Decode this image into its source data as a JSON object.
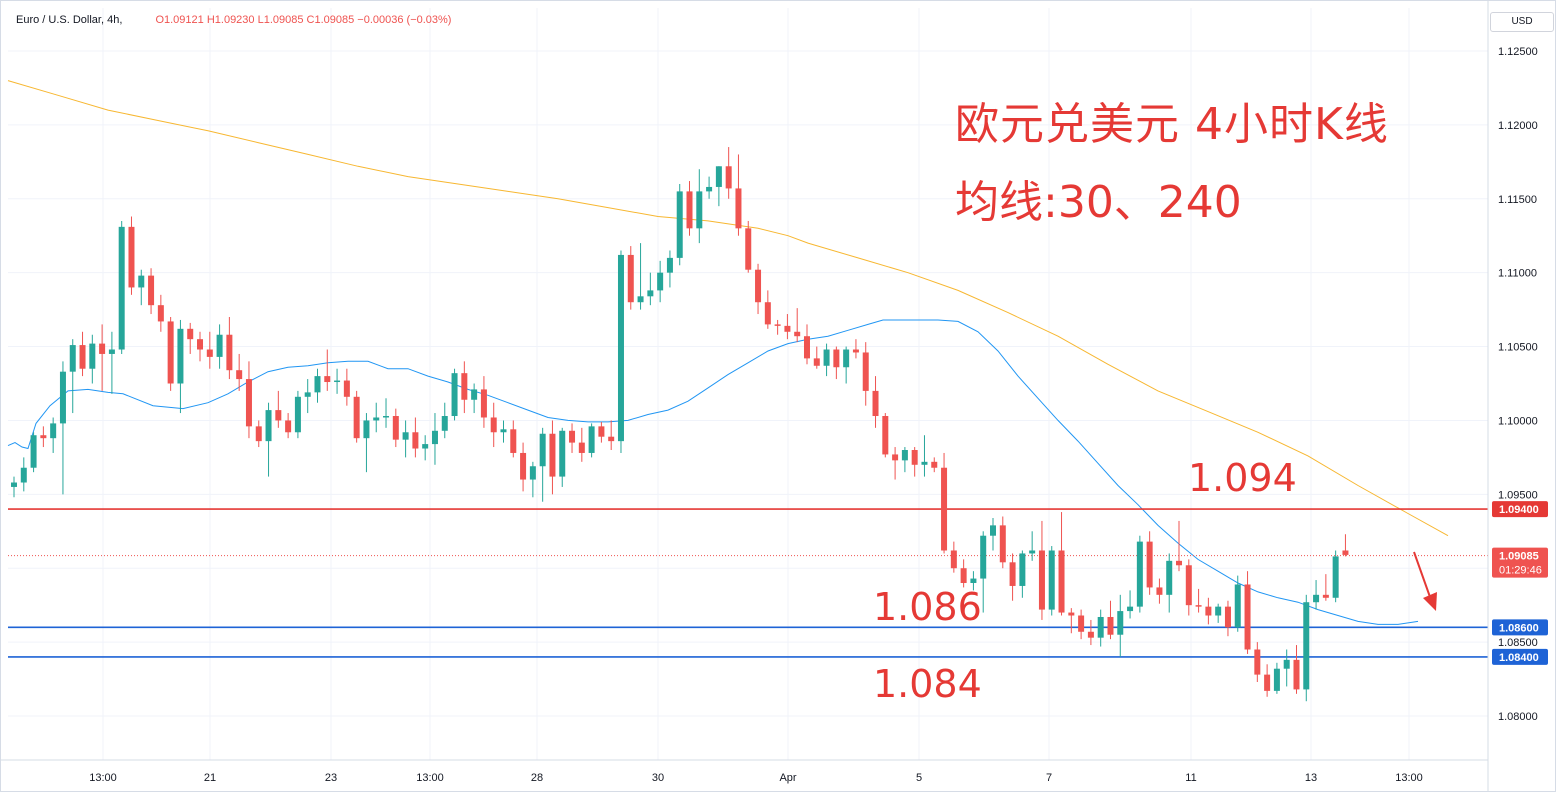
{
  "header": {
    "symbol": "Euro / U.S. Dollar, 4h,",
    "ohlc": "O1.09121  H1.09230  L1.09085  C1.09085  −0.00036 (−0.03%)"
  },
  "currency": "USD",
  "annotations": {
    "title": "欧元兑美元 4小时K线",
    "ma_text": "均线:30、240",
    "level_1094": "1.094",
    "level_1086": "1.086",
    "level_1084": "1.084"
  },
  "colors": {
    "up": "#26a69a",
    "down": "#ef5350",
    "ma30": "#2196f3",
    "ma240": "#f7b731",
    "resistance": "#e53935",
    "support": "#1e63d6"
  },
  "chart_data": {
    "type": "candlestick",
    "title": "",
    "ylim": [
      1.077,
      1.127
    ],
    "y_ticks": [
      "1.12500",
      "1.12000",
      "1.11500",
      "1.11000",
      "1.10500",
      "1.10000",
      "1.09500",
      "1.08500",
      "1.08000"
    ],
    "x_ticks": [
      "13:00",
      "21",
      "23",
      "13:00",
      "28",
      "30",
      "Apr",
      "5",
      "7",
      "11",
      "13",
      "13:00"
    ],
    "price_labels": {
      "resistance": "1.09400",
      "current": "1.09085",
      "countdown": "01:29:46",
      "support_1": "1.08600",
      "support_2": "1.08400"
    },
    "horizontal_lines": [
      {
        "value": 1.094,
        "role": "resistance"
      },
      {
        "value": 1.086,
        "role": "support"
      },
      {
        "value": 1.084,
        "role": "support"
      },
      {
        "value": 1.09085,
        "role": "current"
      }
    ],
    "candles": [
      [
        1.0955,
        1.0962,
        1.0948,
        1.0958
      ],
      [
        1.0958,
        1.0975,
        1.0952,
        1.0968
      ],
      [
        1.0968,
        1.0992,
        1.0965,
        1.099
      ],
      [
        1.099,
        1.0996,
        1.0982,
        1.0988
      ],
      [
        1.0988,
        1.1002,
        1.0978,
        1.0998
      ],
      [
        1.0998,
        1.104,
        1.095,
        1.1033
      ],
      [
        1.1033,
        1.1055,
        1.1005,
        1.1051
      ],
      [
        1.1051,
        1.106,
        1.103,
        1.1035
      ],
      [
        1.1035,
        1.1058,
        1.1025,
        1.1052
      ],
      [
        1.1052,
        1.1065,
        1.102,
        1.1045
      ],
      [
        1.1045,
        1.106,
        1.1018,
        1.1048
      ],
      [
        1.1048,
        1.1135,
        1.1045,
        1.1131
      ],
      [
        1.1131,
        1.1138,
        1.1085,
        1.109
      ],
      [
        1.109,
        1.1102,
        1.1078,
        1.1098
      ],
      [
        1.1098,
        1.1103,
        1.1072,
        1.1078
      ],
      [
        1.1078,
        1.1085,
        1.106,
        1.1067
      ],
      [
        1.1067,
        1.107,
        1.102,
        1.1025
      ],
      [
        1.1025,
        1.1068,
        1.1005,
        1.1062
      ],
      [
        1.1062,
        1.1066,
        1.1045,
        1.1055
      ],
      [
        1.1055,
        1.106,
        1.104,
        1.1048
      ],
      [
        1.1048,
        1.106,
        1.1035,
        1.1043
      ],
      [
        1.1043,
        1.1065,
        1.1035,
        1.1058
      ],
      [
        1.1058,
        1.107,
        1.1028,
        1.1034
      ],
      [
        1.1034,
        1.1045,
        1.102,
        1.1028
      ],
      [
        1.1028,
        1.104,
        1.0988,
        1.0996
      ],
      [
        1.0996,
        1.1,
        1.0982,
        1.0986
      ],
      [
        1.0986,
        1.1012,
        1.0962,
        1.1007
      ],
      [
        1.1007,
        1.102,
        1.0995,
        1.1
      ],
      [
        1.1,
        1.1005,
        1.0988,
        1.0992
      ],
      [
        1.0992,
        1.102,
        1.0988,
        1.1016
      ],
      [
        1.1016,
        1.1028,
        1.1005,
        1.1019
      ],
      [
        1.1019,
        1.1035,
        1.1012,
        1.103
      ],
      [
        1.103,
        1.1048,
        1.102,
        1.1026
      ],
      [
        1.1026,
        1.1035,
        1.1018,
        1.1027
      ],
      [
        1.1027,
        1.1035,
        1.101,
        1.1016
      ],
      [
        1.1016,
        1.102,
        1.0985,
        1.0988
      ],
      [
        1.0988,
        1.1005,
        1.0965,
        1.1
      ],
      [
        1.1,
        1.1012,
        1.0992,
        1.1002
      ],
      [
        1.1002,
        1.1015,
        1.0995,
        1.1003
      ],
      [
        1.1003,
        1.1008,
        1.0982,
        1.0987
      ],
      [
        1.0987,
        1.1,
        1.0975,
        1.0992
      ],
      [
        1.0992,
        1.1002,
        1.0975,
        1.0981
      ],
      [
        1.0981,
        1.099,
        1.0973,
        1.0984
      ],
      [
        1.0984,
        1.1005,
        1.097,
        1.0993
      ],
      [
        1.0993,
        1.1012,
        1.0988,
        1.1003
      ],
      [
        1.1003,
        1.1035,
        1.1,
        1.1032
      ],
      [
        1.1032,
        1.104,
        1.1005,
        1.1014
      ],
      [
        1.1014,
        1.1025,
        1.1005,
        1.1021
      ],
      [
        1.1021,
        1.103,
        1.0995,
        1.1002
      ],
      [
        1.1002,
        1.1012,
        1.0982,
        1.0992
      ],
      [
        1.0992,
        1.1,
        1.0985,
        1.0994
      ],
      [
        1.0994,
        1.1,
        1.0975,
        1.0978
      ],
      [
        1.0978,
        1.0985,
        1.0952,
        1.096
      ],
      [
        1.096,
        1.0972,
        1.0948,
        1.0969
      ],
      [
        1.0969,
        1.0995,
        1.0945,
        1.0991
      ],
      [
        1.0991,
        1.1,
        1.095,
        1.0962
      ],
      [
        1.0962,
        1.0995,
        1.0955,
        1.0993
      ],
      [
        1.0993,
        1.0998,
        1.0978,
        1.0985
      ],
      [
        1.0985,
        1.0995,
        1.0972,
        1.0978
      ],
      [
        1.0978,
        1.0998,
        1.0975,
        1.0996
      ],
      [
        1.0996,
        1.0999,
        1.0985,
        1.0989
      ],
      [
        1.0989,
        1.1,
        1.098,
        1.0986
      ],
      [
        1.0986,
        1.1115,
        1.0978,
        1.1112
      ],
      [
        1.1112,
        1.1118,
        1.1075,
        1.108
      ],
      [
        1.108,
        1.112,
        1.1075,
        1.1084
      ],
      [
        1.1084,
        1.11,
        1.1078,
        1.1088
      ],
      [
        1.1088,
        1.1108,
        1.108,
        1.11
      ],
      [
        1.11,
        1.1115,
        1.109,
        1.111
      ],
      [
        1.111,
        1.116,
        1.1105,
        1.1155
      ],
      [
        1.1155,
        1.1162,
        1.1125,
        1.113
      ],
      [
        1.113,
        1.117,
        1.112,
        1.1155
      ],
      [
        1.1155,
        1.1165,
        1.115,
        1.1158
      ],
      [
        1.1158,
        1.1172,
        1.1145,
        1.1172
      ],
      [
        1.1172,
        1.1185,
        1.115,
        1.1157
      ],
      [
        1.1157,
        1.118,
        1.1125,
        1.113
      ],
      [
        1.113,
        1.1135,
        1.11,
        1.1102
      ],
      [
        1.1102,
        1.1106,
        1.1072,
        1.108
      ],
      [
        1.108,
        1.1088,
        1.1062,
        1.1065
      ],
      [
        1.1065,
        1.1068,
        1.1058,
        1.1064
      ],
      [
        1.1064,
        1.1072,
        1.1055,
        1.106
      ],
      [
        1.106,
        1.1076,
        1.1053,
        1.1057
      ],
      [
        1.1057,
        1.1065,
        1.1038,
        1.1042
      ],
      [
        1.1042,
        1.105,
        1.1035,
        1.1037
      ],
      [
        1.1037,
        1.1052,
        1.103,
        1.1048
      ],
      [
        1.1048,
        1.105,
        1.1028,
        1.1036
      ],
      [
        1.1036,
        1.105,
        1.1025,
        1.1048
      ],
      [
        1.1048,
        1.1055,
        1.1042,
        1.1046
      ],
      [
        1.1046,
        1.1053,
        1.101,
        1.102
      ],
      [
        1.102,
        1.103,
        1.0995,
        1.1003
      ],
      [
        1.1003,
        1.1005,
        1.0975,
        1.0977
      ],
      [
        1.0977,
        1.0982,
        1.096,
        1.0973
      ],
      [
        1.0973,
        1.0982,
        1.0965,
        1.098
      ],
      [
        1.098,
        1.0982,
        1.0962,
        1.097
      ],
      [
        1.097,
        1.099,
        1.0962,
        1.0972
      ],
      [
        1.0972,
        1.0975,
        1.0965,
        1.0968
      ],
      [
        1.0968,
        1.0978,
        1.091,
        1.0912
      ],
      [
        1.0912,
        1.0918,
        1.0897,
        1.09
      ],
      [
        1.09,
        1.0906,
        1.0887,
        1.089
      ],
      [
        1.089,
        1.0898,
        1.0885,
        1.0893
      ],
      [
        1.0893,
        1.0925,
        1.087,
        1.0922
      ],
      [
        1.0922,
        1.0934,
        1.0912,
        1.0929
      ],
      [
        1.0929,
        1.0935,
        1.09,
        1.0904
      ],
      [
        1.0904,
        1.091,
        1.0878,
        1.0888
      ],
      [
        1.0888,
        1.0912,
        1.088,
        1.091
      ],
      [
        1.091,
        1.0925,
        1.0905,
        1.0912
      ],
      [
        1.0912,
        1.0932,
        1.0865,
        1.0872
      ],
      [
        1.0872,
        1.0915,
        1.0868,
        1.0912
      ],
      [
        1.0912,
        1.0938,
        1.0868,
        1.087
      ],
      [
        1.087,
        1.0873,
        1.0856,
        1.0868
      ],
      [
        1.0868,
        1.0872,
        1.0852,
        1.0857
      ],
      [
        1.0857,
        1.0865,
        1.0848,
        1.0853
      ],
      [
        1.0853,
        1.0872,
        1.0847,
        1.0867
      ],
      [
        1.0867,
        1.0878,
        1.0852,
        1.0855
      ],
      [
        1.0855,
        1.0882,
        1.084,
        1.0871
      ],
      [
        1.0871,
        1.0885,
        1.0866,
        1.0874
      ],
      [
        1.0874,
        1.0922,
        1.087,
        1.0918
      ],
      [
        1.0918,
        1.0925,
        1.0882,
        1.0887
      ],
      [
        1.0887,
        1.0893,
        1.0876,
        1.0882
      ],
      [
        1.0882,
        1.091,
        1.087,
        1.0905
      ],
      [
        1.0905,
        1.0932,
        1.0898,
        1.0902
      ],
      [
        1.0902,
        1.0906,
        1.0868,
        1.0875
      ],
      [
        1.0875,
        1.0886,
        1.087,
        1.0874
      ],
      [
        1.0874,
        1.088,
        1.0862,
        1.0868
      ],
      [
        1.0868,
        1.0876,
        1.0863,
        1.0874
      ],
      [
        1.0874,
        1.0878,
        1.0854,
        1.086
      ],
      [
        1.086,
        1.0895,
        1.0857,
        1.0889
      ],
      [
        1.0889,
        1.0898,
        1.0842,
        1.0845
      ],
      [
        1.0845,
        1.085,
        1.0823,
        1.0828
      ],
      [
        1.0828,
        1.0835,
        1.0813,
        1.0817
      ],
      [
        1.0817,
        1.0836,
        1.0815,
        1.0832
      ],
      [
        1.0832,
        1.0845,
        1.082,
        1.0838
      ],
      [
        1.0838,
        1.0848,
        1.0815,
        1.0818
      ],
      [
        1.0818,
        1.0882,
        1.081,
        1.0877
      ],
      [
        1.0877,
        1.0892,
        1.0872,
        1.0882
      ],
      [
        1.0882,
        1.0896,
        1.0878,
        1.088
      ],
      [
        1.088,
        1.0912,
        1.0877,
        1.0908
      ],
      [
        1.0912,
        1.0923,
        1.0908,
        1.0909
      ]
    ],
    "ma30": [
      [
        0,
        1.0983
      ],
      [
        7,
        1.0985
      ],
      [
        14,
        1.0982
      ],
      [
        20,
        1.0981
      ],
      [
        28,
        1.0998
      ],
      [
        42,
        1.101
      ],
      [
        60,
        1.102
      ],
      [
        80,
        1.1021
      ],
      [
        100,
        1.1019
      ],
      [
        115,
        1.1018
      ],
      [
        145,
        1.101
      ],
      [
        175,
        1.1008
      ],
      [
        200,
        1.1012
      ],
      [
        220,
        1.1018
      ],
      [
        240,
        1.1026
      ],
      [
        260,
        1.1033
      ],
      [
        280,
        1.1036
      ],
      [
        300,
        1.1037
      ],
      [
        320,
        1.1039
      ],
      [
        340,
        1.104
      ],
      [
        360,
        1.104
      ],
      [
        380,
        1.1035
      ],
      [
        400,
        1.1035
      ],
      [
        420,
        1.103
      ],
      [
        440,
        1.1026
      ],
      [
        460,
        1.1021
      ],
      [
        480,
        1.1017
      ],
      [
        500,
        1.1012
      ],
      [
        520,
        1.1007
      ],
      [
        540,
        1.1002
      ],
      [
        560,
        1.1
      ],
      [
        580,
        1.0999
      ],
      [
        600,
        1.0999
      ],
      [
        620,
        1.1
      ],
      [
        640,
        1.1004
      ],
      [
        660,
        1.1007
      ],
      [
        680,
        1.1013
      ],
      [
        700,
        1.1022
      ],
      [
        720,
        1.1031
      ],
      [
        740,
        1.1039
      ],
      [
        760,
        1.1047
      ],
      [
        780,
        1.1052
      ],
      [
        800,
        1.1055
      ],
      [
        820,
        1.1057
      ],
      [
        840,
        1.1061
      ],
      [
        860,
        1.1065
      ],
      [
        875,
        1.1068
      ],
      [
        900,
        1.1068
      ],
      [
        930,
        1.1068
      ],
      [
        950,
        1.1067
      ],
      [
        970,
        1.106
      ],
      [
        990,
        1.1047
      ],
      [
        1010,
        1.103
      ],
      [
        1030,
        1.1015
      ],
      [
        1050,
        1.1
      ],
      [
        1070,
        1.0986
      ],
      [
        1090,
        1.0971
      ],
      [
        1110,
        1.0956
      ],
      [
        1130,
        1.0943
      ],
      [
        1150,
        1.0929
      ],
      [
        1170,
        1.0917
      ],
      [
        1190,
        1.0906
      ],
      [
        1210,
        1.0898
      ],
      [
        1230,
        1.089
      ],
      [
        1250,
        1.0884
      ],
      [
        1270,
        1.088
      ],
      [
        1290,
        1.0877
      ],
      [
        1310,
        1.0872
      ],
      [
        1330,
        1.0868
      ],
      [
        1350,
        1.0864
      ],
      [
        1370,
        1.0862
      ],
      [
        1390,
        1.0862
      ],
      [
        1410,
        1.0864
      ]
    ],
    "ma240": [
      [
        0,
        1.123
      ],
      [
        50,
        1.122
      ],
      [
        100,
        1.121
      ],
      [
        150,
        1.1203
      ],
      [
        200,
        1.1196
      ],
      [
        250,
        1.1188
      ],
      [
        300,
        1.118
      ],
      [
        350,
        1.1172
      ],
      [
        400,
        1.1165
      ],
      [
        450,
        1.116
      ],
      [
        500,
        1.1155
      ],
      [
        550,
        1.115
      ],
      [
        600,
        1.1144
      ],
      [
        650,
        1.1138
      ],
      [
        700,
        1.1135
      ],
      [
        750,
        1.113
      ],
      [
        780,
        1.1125
      ],
      [
        800,
        1.112
      ],
      [
        850,
        1.111
      ],
      [
        900,
        1.11
      ],
      [
        950,
        1.1088
      ],
      [
        1000,
        1.1073
      ],
      [
        1050,
        1.1057
      ],
      [
        1100,
        1.1038
      ],
      [
        1150,
        1.102
      ],
      [
        1200,
        1.1006
      ],
      [
        1250,
        1.0992
      ],
      [
        1300,
        1.0976
      ],
      [
        1350,
        1.0956
      ],
      [
        1400,
        1.0937
      ],
      [
        1440,
        1.0922
      ]
    ]
  }
}
